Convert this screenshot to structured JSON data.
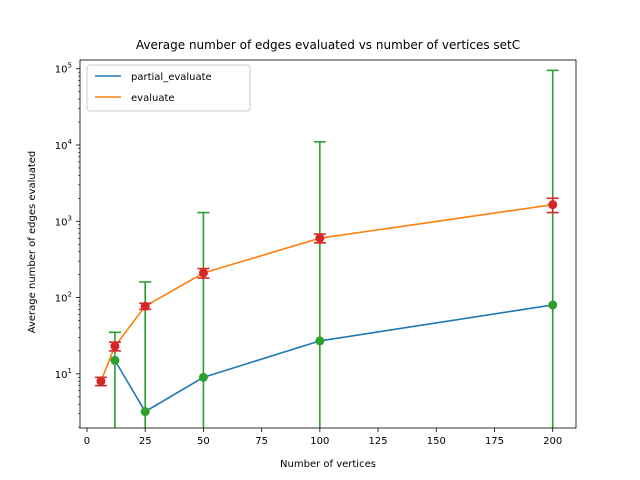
{
  "chart_data": {
    "type": "line",
    "title": "Average number of edges evaluated vs number of vertices setC",
    "xlabel": "Number of vertices",
    "ylabel": "Average number of edges evaluated",
    "yscale": "log",
    "xlim": [
      -3,
      210
    ],
    "ylim": [
      1.95,
      130000
    ],
    "xticks": [
      0,
      25,
      50,
      75,
      100,
      125,
      150,
      175,
      200
    ],
    "yticks": [
      10,
      100,
      1000,
      10000,
      100000
    ],
    "ytick_labels": [
      {
        "base": "10",
        "exp": "1"
      },
      {
        "base": "10",
        "exp": "2"
      },
      {
        "base": "10",
        "exp": "3"
      },
      {
        "base": "10",
        "exp": "4"
      },
      {
        "base": "10",
        "exp": "5"
      }
    ],
    "legend_position": "top-left",
    "series": [
      {
        "name": "partial_evaluate",
        "color": "#1f77b4",
        "x": [
          12,
          25,
          50,
          100,
          200
        ],
        "y": [
          15,
          3.2,
          9,
          27,
          80
        ],
        "marker_color": "#2ca02c",
        "err_low": [
          0,
          0,
          0,
          0,
          0
        ],
        "err_high": [
          35,
          160,
          1300,
          11000,
          95000
        ]
      },
      {
        "name": "evaluate",
        "color": "#ff7f0e",
        "x": [
          6,
          12,
          25,
          50,
          100,
          200
        ],
        "y": [
          8,
          23,
          77,
          210,
          600,
          1650
        ],
        "marker_color": "#d62728",
        "err_low": [
          7,
          20,
          70,
          180,
          520,
          1300
        ],
        "err_high": [
          9,
          26,
          84,
          240,
          680,
          2000
        ]
      }
    ]
  }
}
